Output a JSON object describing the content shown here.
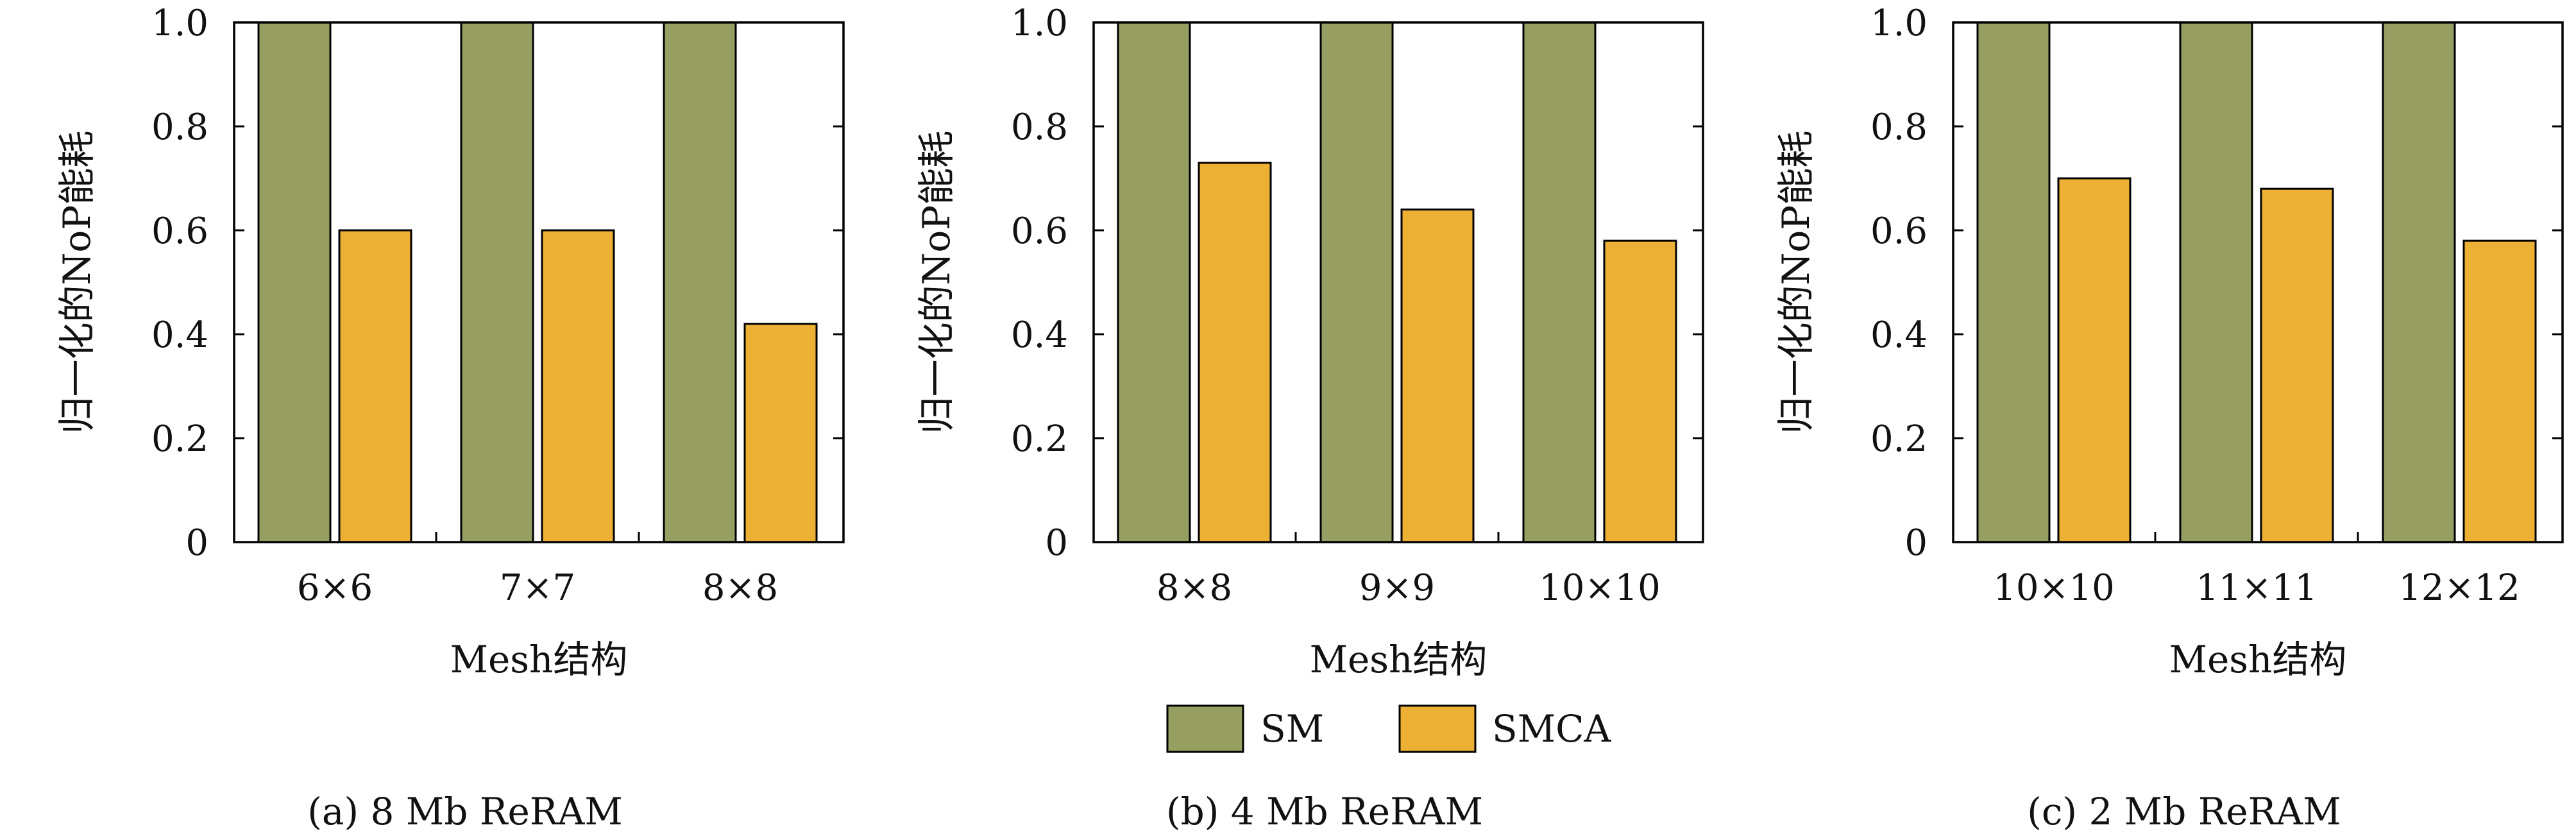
{
  "colors": {
    "SM": "#969e62",
    "SMCA": "#ecb134",
    "frame": "#000000"
  },
  "legend": {
    "items": [
      {
        "name": "SM",
        "color": "#969e62"
      },
      {
        "name": "SMCA",
        "color": "#ecb134"
      }
    ]
  },
  "chart_data": [
    {
      "type": "bar",
      "caption": "(a) 8 Mb ReRAM",
      "xlabel": "Mesh结构",
      "ylabel": "归一化的NoP能耗",
      "ylim": [
        0,
        1.0
      ],
      "yticks": [
        "0",
        "0.2",
        "0.4",
        "0.6",
        "0.8",
        "1.0"
      ],
      "categories": [
        "6×6",
        "7×7",
        "8×8"
      ],
      "series": [
        {
          "name": "SM",
          "values": [
            1.0,
            1.0,
            1.0
          ]
        },
        {
          "name": "SMCA",
          "values": [
            0.6,
            0.6,
            0.42
          ]
        }
      ]
    },
    {
      "type": "bar",
      "caption": "(b) 4 Mb ReRAM",
      "xlabel": "Mesh结构",
      "ylabel": "归一化的NoP能耗",
      "ylim": [
        0,
        1.0
      ],
      "yticks": [
        "0",
        "0.2",
        "0.4",
        "0.6",
        "0.8",
        "1.0"
      ],
      "categories": [
        "8×8",
        "9×9",
        "10×10"
      ],
      "series": [
        {
          "name": "SM",
          "values": [
            1.0,
            1.0,
            1.0
          ]
        },
        {
          "name": "SMCA",
          "values": [
            0.73,
            0.64,
            0.58
          ]
        }
      ]
    },
    {
      "type": "bar",
      "caption": "(c) 2 Mb ReRAM",
      "xlabel": "Mesh结构",
      "ylabel": "归一化的NoP能耗",
      "ylim": [
        0,
        1.0
      ],
      "yticks": [
        "0",
        "0.2",
        "0.4",
        "0.6",
        "0.8",
        "1.0"
      ],
      "categories": [
        "10×10",
        "11×11",
        "12×12"
      ],
      "series": [
        {
          "name": "SM",
          "values": [
            1.0,
            1.0,
            1.0
          ]
        },
        {
          "name": "SMCA",
          "values": [
            0.7,
            0.68,
            0.58
          ]
        }
      ]
    }
  ]
}
